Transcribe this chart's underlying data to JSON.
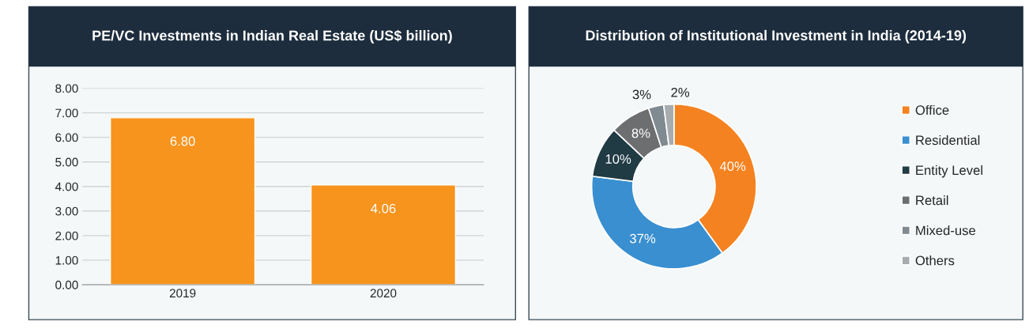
{
  "chart_data": [
    {
      "type": "bar",
      "title": "PE/VC Investments in Indian Real Estate (US$ billion)",
      "categories": [
        "2019",
        "2020"
      ],
      "values": [
        6.8,
        4.06
      ],
      "color": "#f7941d",
      "value_labels": [
        "6.80",
        "4.06"
      ],
      "ylim": [
        0,
        8
      ],
      "yticks": [
        {
          "value": 0,
          "label": "0.00"
        },
        {
          "value": 1,
          "label": "1.00"
        },
        {
          "value": 2,
          "label": "2.00"
        },
        {
          "value": 3,
          "label": "3.00"
        },
        {
          "value": 4,
          "label": "4.00"
        },
        {
          "value": 5,
          "label": "5.00"
        },
        {
          "value": 6,
          "label": "6.00"
        },
        {
          "value": 7,
          "label": "7.00"
        },
        {
          "value": 8,
          "label": "8.00"
        }
      ],
      "grid": "y",
      "legend": false
    },
    {
      "type": "donut",
      "title": "Distribution of Institutional Investment in India (2014-19)",
      "categories": [
        "Office",
        "Residential",
        "Entity Level",
        "Retail",
        "Mixed-use",
        "Others"
      ],
      "values": [
        40,
        37,
        10,
        8,
        3,
        2
      ],
      "colors": [
        "#f58220",
        "#3a8fd0",
        "#213b45",
        "#6d6e70",
        "#808a91",
        "#a8acae"
      ],
      "value_labels": [
        "40%",
        "37%",
        "10%",
        "8%",
        "3%",
        "2%"
      ],
      "legend": "right"
    }
  ]
}
